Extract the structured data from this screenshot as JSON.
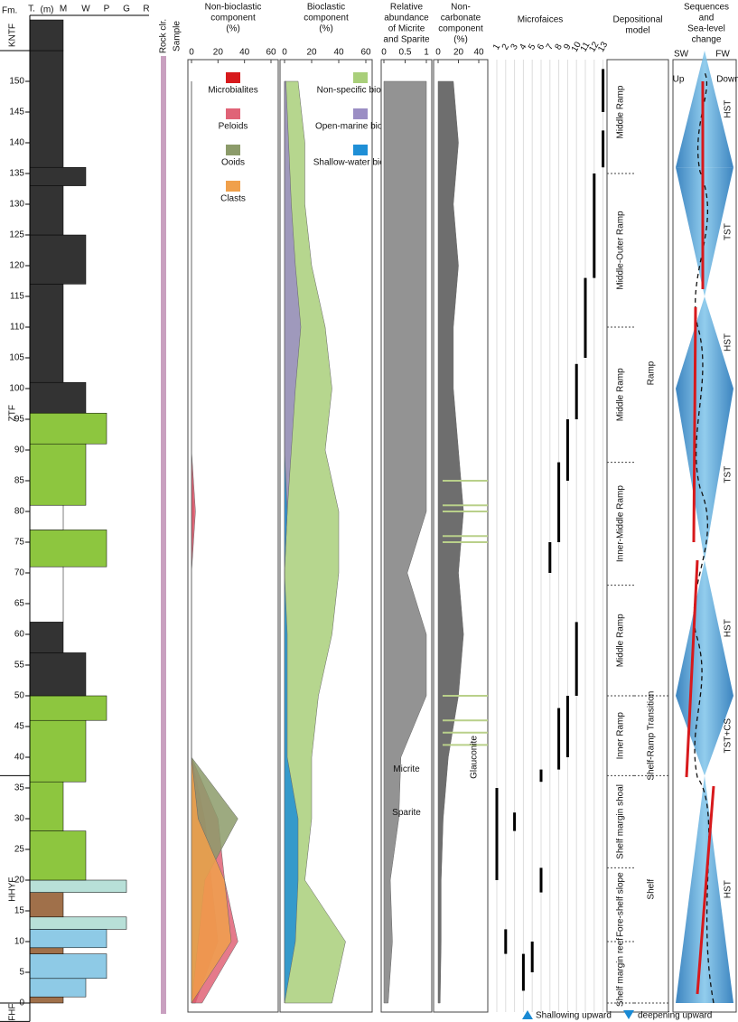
{
  "chart_data": {
    "type": "stratigraphic-section",
    "formation_header": "Fm.",
    "formations": [
      {
        "name": "FHF",
        "bottom": -3,
        "top": 0
      },
      {
        "name": "HHYF",
        "bottom": 0,
        "top": 37
      },
      {
        "name": "ZTF",
        "bottom": 37,
        "top": 155
      },
      {
        "name": "KNTF",
        "bottom": 155,
        "top": 160
      }
    ],
    "depth_unit": "(m)",
    "ylim": [
      -3,
      160
    ],
    "yticks": [
      0,
      5,
      10,
      15,
      20,
      25,
      30,
      35,
      40,
      45,
      50,
      55,
      60,
      65,
      70,
      75,
      80,
      85,
      90,
      95,
      100,
      105,
      110,
      115,
      120,
      125,
      130,
      135,
      140,
      145,
      150
    ],
    "textures": [
      "T.",
      "M",
      "W",
      "P",
      "G",
      "R"
    ],
    "lithology": [
      {
        "bottom": 0,
        "top": 1,
        "texture": "M",
        "color": "#a0704a"
      },
      {
        "bottom": 1,
        "top": 4,
        "texture": "W",
        "color": "#8ecae6"
      },
      {
        "bottom": 4,
        "top": 8,
        "texture": "P",
        "color": "#8ecae6"
      },
      {
        "bottom": 8,
        "top": 9,
        "texture": "M",
        "color": "#a0704a"
      },
      {
        "bottom": 9,
        "top": 12,
        "texture": "P",
        "color": "#8ecae6"
      },
      {
        "bottom": 12,
        "top": 14,
        "texture": "G",
        "color": "#b8e0d8"
      },
      {
        "bottom": 14,
        "top": 18,
        "texture": "M",
        "color": "#a0704a"
      },
      {
        "bottom": 18,
        "top": 20,
        "texture": "G",
        "color": "#b8e0d8"
      },
      {
        "bottom": 20,
        "top": 28,
        "texture": "W",
        "color": "#8dc63f"
      },
      {
        "bottom": 28,
        "top": 36,
        "texture": "M",
        "color": "#8dc63f"
      },
      {
        "bottom": 36,
        "top": 46,
        "texture": "W",
        "color": "#8dc63f"
      },
      {
        "bottom": 46,
        "top": 50,
        "texture": "P",
        "color": "#8dc63f"
      },
      {
        "bottom": 50,
        "top": 57,
        "texture": "W",
        "color": "#333333"
      },
      {
        "bottom": 57,
        "top": 62,
        "texture": "M",
        "color": "#333333"
      },
      {
        "bottom": 62,
        "top": 71,
        "texture": "M",
        "color": "#ffffff"
      },
      {
        "bottom": 71,
        "top": 77,
        "texture": "P",
        "color": "#8dc63f"
      },
      {
        "bottom": 77,
        "top": 81,
        "texture": "M",
        "color": "#ffffff"
      },
      {
        "bottom": 81,
        "top": 91,
        "texture": "W",
        "color": "#8dc63f"
      },
      {
        "bottom": 91,
        "top": 96,
        "texture": "P",
        "color": "#8dc63f"
      },
      {
        "bottom": 96,
        "top": 101,
        "texture": "W",
        "color": "#333333"
      },
      {
        "bottom": 101,
        "top": 117,
        "texture": "M",
        "color": "#333333"
      },
      {
        "bottom": 117,
        "top": 125,
        "texture": "W",
        "color": "#333333"
      },
      {
        "bottom": 125,
        "top": 133,
        "texture": "M",
        "color": "#333333"
      },
      {
        "bottom": 133,
        "top": 136,
        "texture": "W",
        "color": "#333333"
      },
      {
        "bottom": 136,
        "top": 155,
        "texture": "M",
        "color": "#333333"
      },
      {
        "bottom": 155,
        "top": 160,
        "texture": "M",
        "color": "#333333"
      }
    ],
    "rock_color_header": "Rock clr.",
    "sample_header": "Sample",
    "depths": [
      0,
      10,
      20,
      30,
      40,
      50,
      60,
      70,
      80,
      90,
      100,
      110,
      120,
      130,
      140,
      150
    ],
    "panels": [
      {
        "title": [
          "Non-bioclastic",
          "component",
          "(%)"
        ],
        "xlim": [
          0,
          60
        ],
        "xticks": [
          0,
          20,
          40,
          60
        ],
        "series": [
          {
            "name": "Microbialites",
            "color": "#d7191c",
            "values": [
              3,
              20,
              15,
              10,
              0,
              0,
              0,
              0,
              2,
              0,
              0,
              0,
              0,
              0,
              0,
              0
            ]
          },
          {
            "name": "Peloids",
            "color": "#e06377",
            "values": [
              8,
              35,
              25,
              20,
              0,
              0,
              0,
              0,
              3,
              0,
              0,
              0,
              0,
              0,
              0,
              0
            ]
          },
          {
            "name": "Ooids",
            "color": "#8c9b6a",
            "values": [
              0,
              5,
              10,
              35,
              0,
              0,
              0,
              0,
              0,
              0,
              0,
              0,
              0,
              0,
              0,
              0
            ]
          },
          {
            "name": "Clasts",
            "color": "#f0a04b",
            "values": [
              0,
              30,
              25,
              5,
              0,
              0,
              0,
              0,
              0,
              0,
              0,
              0,
              0,
              0,
              0,
              0
            ]
          }
        ]
      },
      {
        "title": [
          "Bioclastic",
          "component",
          "(%)"
        ],
        "xlim": [
          0,
          60
        ],
        "xticks": [
          0,
          20,
          40,
          60
        ],
        "series": [
          {
            "name": "Non-specific bioclasts",
            "color": "#a9cf7a",
            "values": [
              35,
              45,
              15,
              20,
              20,
              25,
              35,
              40,
              40,
              30,
              35,
              30,
              20,
              15,
              15,
              10
            ]
          },
          {
            "name": "Open-marine bioclasts",
            "color": "#9b8ec4",
            "values": [
              0,
              0,
              0,
              0,
              0,
              0,
              0,
              0,
              2,
              5,
              8,
              12,
              8,
              5,
              3,
              1
            ]
          },
          {
            "name": "Shallow-water bioclasts",
            "color": "#1f8fd6",
            "values": [
              0,
              8,
              10,
              10,
              2,
              2,
              2,
              0,
              2,
              0,
              0,
              0,
              0,
              0,
              0,
              0
            ]
          }
        ]
      },
      {
        "title": [
          "Relative",
          "abundance",
          "of Micrite",
          "and Sparite"
        ],
        "xlim": [
          0,
          1
        ],
        "xticks": [
          0,
          0.5,
          1
        ],
        "series": [
          {
            "name": "Micrite",
            "color": "#808080",
            "values": [
              0.1,
              0.2,
              0.15,
              0.35,
              0.4,
              1,
              1,
              0.55,
              1,
              1,
              1,
              1,
              1,
              1,
              1,
              1
            ]
          }
        ],
        "annotation": "Sparite"
      },
      {
        "title": [
          "Non-",
          "carbonate",
          "component",
          "(%)"
        ],
        "xlim": [
          0,
          40
        ],
        "xticks": [
          0,
          20,
          40
        ],
        "series": [
          {
            "color": "#555555",
            "values": [
              2,
              3,
              3,
              5,
              10,
              20,
              25,
              20,
              25,
              20,
              15,
              15,
              20,
              15,
              20,
              15
            ]
          }
        ],
        "annotation": "Glauconite",
        "glauconite_levels": [
          42,
          44,
          46,
          50,
          75,
          76,
          80,
          81,
          85
        ],
        "glauconite_color": "#b9d08a"
      }
    ],
    "microfacies_title": "Microfaices",
    "microfacies_ticks": [
      1,
      2,
      3,
      4,
      5,
      6,
      7,
      8,
      9,
      10,
      11,
      12,
      13
    ],
    "microfacies": [
      {
        "facies": 1,
        "bottom": 20,
        "top": 35
      },
      {
        "facies": 2,
        "bottom": 8,
        "top": 12
      },
      {
        "facies": 3,
        "bottom": 28,
        "top": 31
      },
      {
        "facies": 4,
        "bottom": 2,
        "top": 8
      },
      {
        "facies": 5,
        "bottom": 5,
        "top": 10
      },
      {
        "facies": 6,
        "bottom": 18,
        "top": 22
      },
      {
        "facies": 6,
        "bottom": 36,
        "top": 38
      },
      {
        "facies": 7,
        "bottom": 70,
        "top": 75
      },
      {
        "facies": 8,
        "bottom": 38,
        "top": 48
      },
      {
        "facies": 8,
        "bottom": 75,
        "top": 88
      },
      {
        "facies": 9,
        "bottom": 40,
        "top": 50
      },
      {
        "facies": 9,
        "bottom": 85,
        "top": 95
      },
      {
        "facies": 10,
        "bottom": 50,
        "top": 62
      },
      {
        "facies": 10,
        "bottom": 95,
        "top": 104
      },
      {
        "facies": 11,
        "bottom": 105,
        "top": 118
      },
      {
        "facies": 12,
        "bottom": 118,
        "top": 135
      },
      {
        "facies": 13,
        "bottom": 136,
        "top": 142
      },
      {
        "facies": 13,
        "bottom": 145,
        "top": 152
      }
    ],
    "model_title": [
      "Depositional",
      "model"
    ],
    "environments": [
      {
        "name": "Shelf margin reef",
        "bottom": 0,
        "top": 10
      },
      {
        "name": "Fore-shelf slope",
        "bottom": 10,
        "top": 22
      },
      {
        "name": "Shelf margin shoal",
        "bottom": 22,
        "top": 37
      },
      {
        "name": "Inner Ramp",
        "bottom": 37,
        "top": 50
      },
      {
        "name": "Middle Ramp",
        "bottom": 50,
        "top": 68
      },
      {
        "name": "Inner-Middle Ramp",
        "bottom": 68,
        "top": 88
      },
      {
        "name": "Middle Ramp",
        "bottom": 88,
        "top": 110
      },
      {
        "name": "Middle-Outer Ramp",
        "bottom": 110,
        "top": 135
      },
      {
        "name": "Middle Ramp",
        "bottom": 135,
        "top": 155
      }
    ],
    "settings": [
      {
        "name": "Shelf",
        "bottom": 0,
        "top": 37
      },
      {
        "name": "Shelf-Ramp Transition",
        "bottom": 37,
        "top": 50
      },
      {
        "name": "Ramp",
        "bottom": 50,
        "top": 155
      }
    ],
    "sequence_title": [
      "Sequences",
      "and",
      "Sea-level",
      "change"
    ],
    "sequence_axis": {
      "left": "SW",
      "right": "FW",
      "up": "Up",
      "down": "Down"
    },
    "sequences": [
      {
        "name": "HST",
        "bottom": 0,
        "top": 37
      },
      {
        "name": "TST+CS",
        "bottom": 37,
        "top": 50
      },
      {
        "name": "HST",
        "bottom": 50,
        "top": 72
      },
      {
        "name": "TST",
        "bottom": 72,
        "top": 100
      },
      {
        "name": "HST",
        "bottom": 100,
        "top": 115
      },
      {
        "name": "TST",
        "bottom": 115,
        "top": 136
      },
      {
        "name": "HST",
        "bottom": 136,
        "top": 155
      }
    ],
    "legend": [
      "Shallowing upward",
      "deepening upward"
    ]
  }
}
